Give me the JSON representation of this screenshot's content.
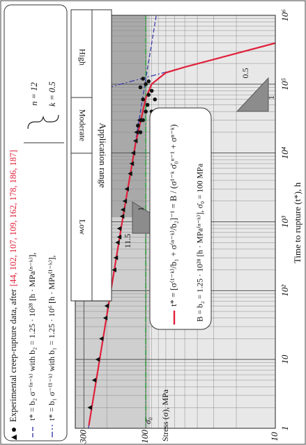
{
  "chart_data": {
    "type": "line",
    "legend": {
      "experimental": "Experimental creep-rupture data, after",
      "refs": "[44, 102, 107, 109, 162, 178, 186, 187]",
      "params": [
        "n = 12",
        "k = 0.5"
      ]
    },
    "application_range": {
      "title": "Application range",
      "bands": [
        "High",
        "Moderate",
        "Low"
      ]
    },
    "formula": {
      "constants": "B = b₂ = 1.25 · 10²⁸ [h · MPa⁽ⁿ⁻ᵏ⁾],  σ̄₀ = 100 MPa"
    },
    "xlabel": "Time to rupture (t*), h",
    "ylabel": "Stress (σ), MPa",
    "log_x": true,
    "log_y": true,
    "grid": true,
    "xlim": [
      1,
      1000000
    ],
    "ylim": [
      10,
      350
    ],
    "xticks": [
      1,
      10,
      {
        "value": 100,
        "label": "10²"
      },
      {
        "value": 1000,
        "label": "10³"
      },
      {
        "value": 10000,
        "label": "10⁴"
      },
      {
        "value": 100000,
        "label": "10⁵"
      },
      {
        "value": 1000000,
        "label": "10⁶"
      }
    ],
    "yticks": [
      10,
      100,
      300
    ],
    "xminorticks": [
      2,
      3,
      4,
      5,
      6,
      7,
      8,
      9,
      20,
      30,
      40,
      50,
      60,
      70,
      80,
      90,
      200,
      300,
      400,
      500,
      600,
      700,
      800,
      900,
      2000,
      3000,
      4000,
      5000,
      6000,
      7000,
      8000,
      9000,
      20000,
      30000,
      40000,
      50000,
      60000,
      70000,
      80000,
      90000,
      200000,
      300000,
      400000,
      500000,
      600000,
      700000,
      800000,
      900000
    ],
    "yminorticks": [
      20,
      30,
      40,
      50,
      60,
      70,
      80,
      90,
      200
    ],
    "reference_line": {
      "value": 100,
      "label": "σ̄₀",
      "color": "#2e9e3e"
    },
    "slopes": [
      {
        "rise": 11.5,
        "run": 1
      },
      {
        "rise": 0.5,
        "run": 1
      }
    ],
    "series": [
      {
        "name": "t* = b₂ σ⁻⁽ⁿ⁻ᵏ⁾  with  b₂ = 1.25 · 10²⁸ [h · MPa⁽ⁿ⁻ᵏ⁾],",
        "type": "line",
        "dash": "dashed",
        "color": "#3c3ca8",
        "x": [
          1,
          1000000
        ],
        "values": [
          277,
          83
        ]
      },
      {
        "name": "t* = b₁ σ⁻⁽¹⁻ᵏ⁾  with  b₁ = 1.25 · 10⁶ [h · MPa⁽¹⁻ᵏ⁾],",
        "type": "line",
        "dash": "dashdot",
        "color": "#3c3ca8",
        "x": [
          66800,
          395000
        ],
        "values": [
          350,
          10
        ]
      },
      {
        "name": "t* = [σ⁽¹⁻ᵏ⁾/b₁ + σ⁽ⁿ⁻ᵏ⁾/b₂]⁻¹ = B / (σ¹⁻ᵏ σ̄₀ⁿ⁻¹ + σⁿ⁻ᵏ)",
        "type": "line",
        "dash": "solid",
        "color": "#e0203a",
        "x": [
          1.1,
          43,
          1172,
          13550,
          62500,
          100300,
          146600,
          177000,
          228000,
          280000,
          395000
        ],
        "values": [
          275,
          200,
          150,
          120,
          100,
          90,
          70,
          50,
          30,
          20,
          10
        ]
      },
      {
        "type": "scatter",
        "marker": "triangle",
        "color": "#111111",
        "x": [
          2,
          5,
          10,
          20,
          40,
          60,
          100,
          200,
          300,
          500,
          600,
          800,
          1200,
          1500,
          2000,
          3000,
          5000,
          7000,
          10000,
          15000,
          20000,
          30000
        ],
        "values": [
          270,
          250,
          235,
          220,
          205,
          200,
          190,
          175,
          170,
          165,
          160,
          160,
          152,
          150,
          145,
          140,
          132,
          128,
          125,
          120,
          118,
          112
        ]
      },
      {
        "type": "scatter",
        "marker": "circle",
        "color": "#111111",
        "x": [
          20000,
          25000,
          30000,
          40000,
          40000,
          50000,
          60000,
          60000,
          70000,
          80000,
          90000,
          100000,
          110000,
          120000
        ],
        "values": [
          110,
          115,
          105,
          100,
          90,
          97,
          105,
          85,
          95,
          90,
          110,
          100,
          95,
          105
        ]
      }
    ]
  }
}
